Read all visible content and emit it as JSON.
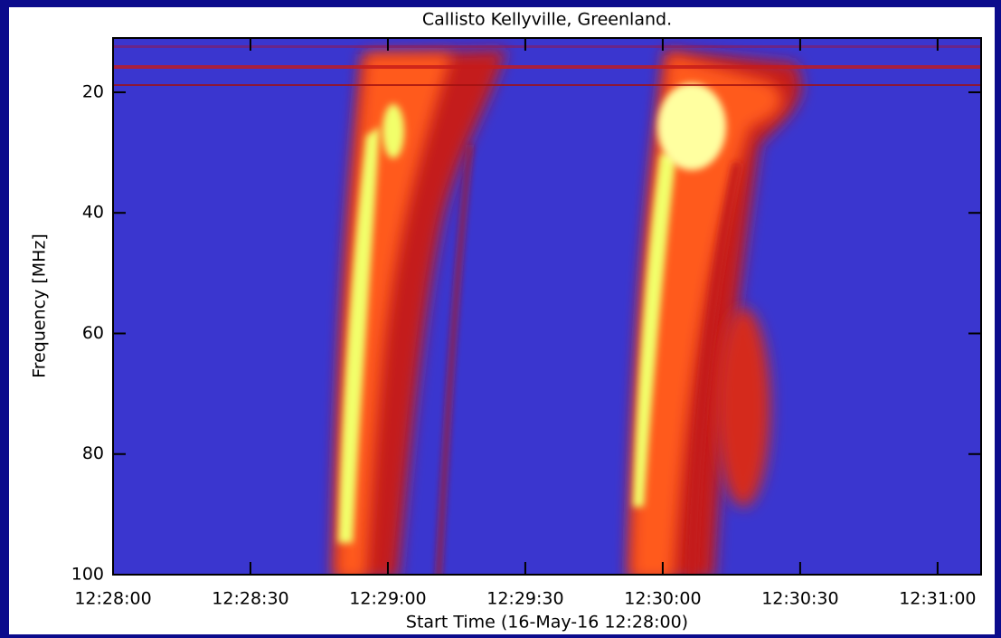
{
  "chart_data": {
    "type": "spectrogram",
    "title": "Callisto Kellyville, Greenland.",
    "x_label": "Start Time (16-May-16 12:28:00)",
    "y_label": "Frequency [MHz]",
    "xlim": [
      0,
      189.5
    ],
    "xticks": [
      {
        "value": 0,
        "label": "12:28:00"
      },
      {
        "value": 30,
        "label": "12:28:30"
      },
      {
        "value": 60,
        "label": "12:29:00"
      },
      {
        "value": 90,
        "label": "12:29:30"
      },
      {
        "value": 120,
        "label": "12:30:00"
      },
      {
        "value": 150,
        "label": "12:30:30"
      },
      {
        "value": 180,
        "label": "12:31:00"
      }
    ],
    "ylim": [
      100,
      11
    ],
    "yticks": [
      20,
      40,
      60,
      80,
      100
    ]
  }
}
